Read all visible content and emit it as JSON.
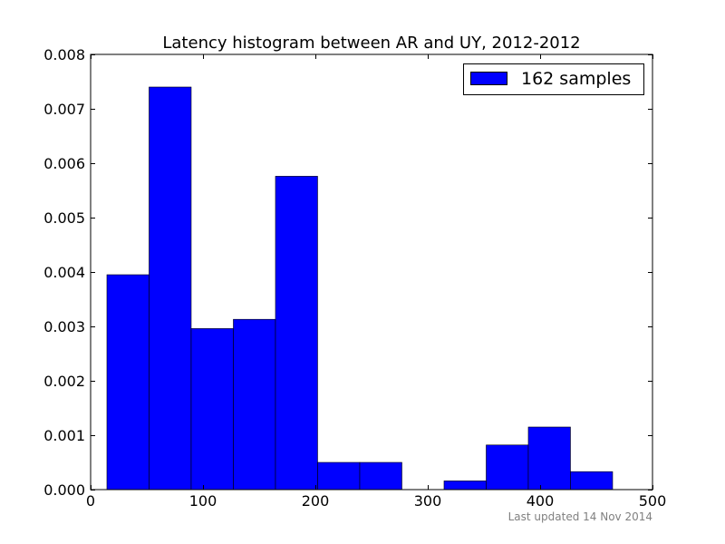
{
  "chart_data": {
    "type": "bar",
    "title": "Latency histogram between AR and UY, 2012-2012",
    "xlabel": "",
    "ylabel": "",
    "xlim": [
      0,
      500
    ],
    "ylim": [
      0,
      0.008
    ],
    "x_ticks": [
      0,
      100,
      200,
      300,
      400,
      500
    ],
    "x_tick_labels": [
      "0",
      "100",
      "200",
      "300",
      "400",
      "500"
    ],
    "y_ticks": [
      0,
      0.001,
      0.002,
      0.003,
      0.004,
      0.005,
      0.006,
      0.007,
      0.008
    ],
    "y_tick_labels": [
      "0.000",
      "0.001",
      "0.002",
      "0.003",
      "0.004",
      "0.005",
      "0.006",
      "0.007",
      "0.008"
    ],
    "grid": false,
    "legend": {
      "placement": "top-right",
      "entries": [
        "162 samples"
      ]
    },
    "series": [
      {
        "name": "162 samples",
        "color": "#0000ff",
        "bins": [
          {
            "start": 14.5,
            "end": 52.0,
            "value": 0.00395
          },
          {
            "start": 52.0,
            "end": 89.5,
            "value": 0.0074
          },
          {
            "start": 89.5,
            "end": 127.0,
            "value": 0.00296
          },
          {
            "start": 127.0,
            "end": 164.5,
            "value": 0.00313
          },
          {
            "start": 164.5,
            "end": 202.0,
            "value": 0.00576
          },
          {
            "start": 202.0,
            "end": 239.5,
            "value": 0.0005
          },
          {
            "start": 239.5,
            "end": 277.0,
            "value": 0.0005
          },
          {
            "start": 277.0,
            "end": 314.5,
            "value": 0.0
          },
          {
            "start": 314.5,
            "end": 352.0,
            "value": 0.00016
          },
          {
            "start": 352.0,
            "end": 389.5,
            "value": 0.00082
          },
          {
            "start": 389.5,
            "end": 427.0,
            "value": 0.00115
          },
          {
            "start": 427.0,
            "end": 464.5,
            "value": 0.00033
          }
        ]
      }
    ]
  },
  "footer": {
    "text": "Last updated 14 Nov 2014"
  }
}
